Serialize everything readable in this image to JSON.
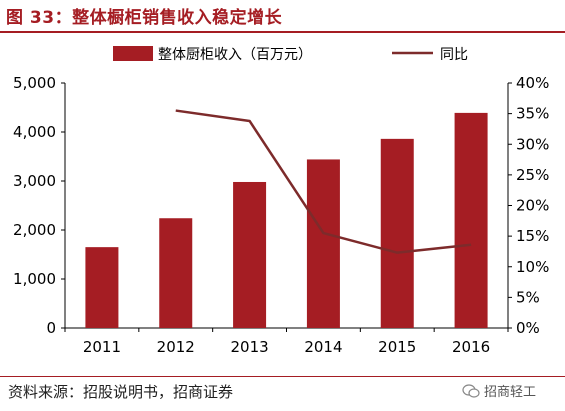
{
  "figure": {
    "title": "图 33：整体橱柜销售收入稳定增长",
    "source": "资料来源：招股说明书，招商证券",
    "watermark": "招商轻工"
  },
  "chart_data": {
    "type": "bar",
    "categories": [
      "2011",
      "2012",
      "2013",
      "2014",
      "2015",
      "2016"
    ],
    "series": [
      {
        "name": "整体厨柜收入（百万元）",
        "type": "bar",
        "axis": "left",
        "color": "#a51d23",
        "values": [
          1650,
          2240,
          2980,
          3440,
          3860,
          4390
        ]
      },
      {
        "name": "同比",
        "type": "line",
        "axis": "right",
        "color": "#7d2b2b",
        "values": [
          null,
          35.5,
          33.8,
          15.5,
          12.3,
          13.6
        ]
      }
    ],
    "y_left": {
      "min": 0,
      "max": 5000,
      "step": 1000,
      "ticks": [
        "0",
        "1,000",
        "2,000",
        "3,000",
        "4,000",
        "5,000"
      ]
    },
    "y_right": {
      "min": 0,
      "max": 40,
      "step": 5,
      "ticks": [
        "0%",
        "5%",
        "10%",
        "15%",
        "20%",
        "25%",
        "30%",
        "35%",
        "40%"
      ]
    },
    "legend_position": "top",
    "grid": false
  }
}
